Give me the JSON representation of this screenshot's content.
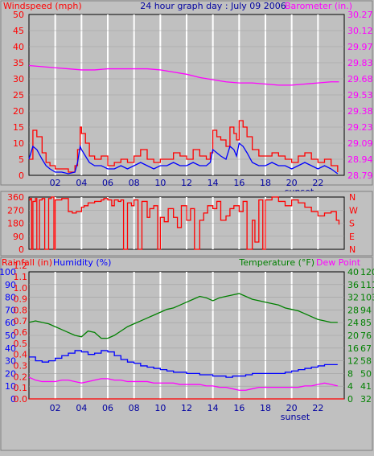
{
  "colors": {
    "background": "#c0c0c0",
    "grid": "#ffffff",
    "wind_speed": "#ff0000",
    "wind_avg": "#0000ff",
    "barometer": "#ff00ff",
    "wind_dir": "#ff0000",
    "humidity": "#0000ff",
    "temperature": "#008000",
    "dew_point": "#ff00ff",
    "rain": "#ff0000"
  },
  "chart_data": [
    {
      "type": "line",
      "title": "24 hour graph day : July 09 2006",
      "ylabel": "Windspeed (mph)",
      "y2label": "Barometer (in.)",
      "x_ticks": [
        "02",
        "04",
        "06",
        "08",
        "10",
        "12",
        "14",
        "16",
        "18",
        "20",
        "22"
      ],
      "sunset_label": "sunset",
      "x_range": [
        0,
        24
      ],
      "ylim": [
        0,
        50
      ],
      "y_ticks": [
        "0",
        "5",
        "10",
        "15",
        "20",
        "25",
        "30",
        "35",
        "40",
        "45",
        "50"
      ],
      "y2lim": [
        28.79,
        30.27
      ],
      "y2_ticks": [
        "28.79",
        "28.94",
        "29.09",
        "29.23",
        "29.38",
        "29.53",
        "29.68",
        "29.83",
        "29.97",
        "30.12",
        "30.27"
      ],
      "grid": true,
      "series": [
        {
          "name": "Windspeed (mph)",
          "axis": "left",
          "x": [
            0,
            0.3,
            0.6,
            1,
            1.3,
            1.6,
            2,
            2.5,
            3,
            3.5,
            3.7,
            3.9,
            4,
            4.3,
            4.6,
            5,
            5.5,
            6,
            6.5,
            7,
            7.5,
            8,
            8.5,
            9,
            9.5,
            10,
            10.5,
            11,
            11.5,
            12,
            12.5,
            13,
            13.5,
            13.8,
            14,
            14.3,
            14.6,
            15,
            15.3,
            15.6,
            15.8,
            16,
            16.3,
            16.6,
            17,
            17.5,
            18,
            18.5,
            19,
            19.5,
            20,
            20.5,
            21,
            21.5,
            22,
            22.5,
            23,
            23.5
          ],
          "values": [
            5,
            14,
            12,
            7,
            4,
            3,
            2,
            2,
            1,
            3,
            8,
            15,
            13,
            10,
            6,
            5,
            6,
            3,
            4,
            5,
            4,
            6,
            8,
            5,
            4,
            5,
            5,
            7,
            6,
            5,
            8,
            6,
            5,
            7,
            14,
            12,
            11,
            9,
            15,
            13,
            11,
            17,
            15,
            12,
            8,
            6,
            6,
            7,
            6,
            5,
            4,
            6,
            7,
            5,
            4,
            5,
            3,
            1
          ]
        },
        {
          "name": "Wind average",
          "axis": "left",
          "x": [
            0,
            0.3,
            0.6,
            1,
            1.3,
            1.6,
            2,
            2.5,
            3,
            3.5,
            3.7,
            3.9,
            4,
            4.3,
            4.6,
            5,
            5.5,
            6,
            6.5,
            7,
            7.5,
            8,
            8.5,
            9,
            9.5,
            10,
            10.5,
            11,
            11.5,
            12,
            12.5,
            13,
            13.5,
            13.8,
            14,
            14.3,
            14.6,
            15,
            15.3,
            15.6,
            15.8,
            16,
            16.3,
            16.6,
            17,
            17.5,
            18,
            18.5,
            19,
            19.5,
            20,
            20.5,
            21,
            21.5,
            22,
            22.5,
            23,
            23.5
          ],
          "values": [
            5,
            9,
            8,
            5,
            3,
            2,
            1,
            1,
            0.5,
            1,
            4,
            9,
            8,
            6,
            4,
            3,
            3,
            2,
            2,
            3,
            2,
            3,
            4,
            3,
            2,
            3,
            3,
            4,
            3,
            3,
            4,
            3,
            3,
            4,
            8,
            7,
            6,
            5,
            9,
            8,
            6,
            10,
            9,
            7,
            4,
            3,
            3,
            4,
            3,
            3,
            2,
            3,
            4,
            3,
            2,
            3,
            2,
            0.5
          ]
        },
        {
          "name": "Barometer (in.)",
          "axis": "right",
          "x": [
            0,
            1,
            2,
            3,
            4,
            5,
            6,
            7,
            8,
            9,
            10,
            11,
            12,
            13,
            14,
            15,
            16,
            17,
            18,
            19,
            20,
            21,
            22,
            23,
            23.6
          ],
          "values": [
            29.8,
            29.79,
            29.78,
            29.77,
            29.76,
            29.76,
            29.77,
            29.77,
            29.77,
            29.77,
            29.76,
            29.74,
            29.72,
            29.69,
            29.67,
            29.65,
            29.64,
            29.64,
            29.63,
            29.62,
            29.62,
            29.63,
            29.64,
            29.65,
            29.65
          ]
        }
      ]
    },
    {
      "type": "line",
      "ylabel": "Wind direction (degrees)",
      "ylim": [
        0,
        360
      ],
      "y_ticks": [
        "0",
        "90",
        "180",
        "270",
        "360"
      ],
      "y2_ticks": [
        "N",
        "E",
        "S",
        "W",
        "N"
      ],
      "x_range": [
        0,
        24
      ],
      "grid": true,
      "series": [
        {
          "name": "Wind direction",
          "x": [
            0,
            0.1,
            0.2,
            0.3,
            0.5,
            0.6,
            0.8,
            1,
            1.2,
            1.5,
            1.7,
            1.9,
            2,
            2.5,
            3,
            3.3,
            3.6,
            4,
            4.2,
            4.5,
            5,
            5.5,
            5.7,
            6,
            6.3,
            6.5,
            6.8,
            7,
            7.2,
            7.5,
            7.8,
            8,
            8.3,
            8.6,
            9,
            9.2,
            9.5,
            9.8,
            10,
            10.3,
            10.6,
            11,
            11.3,
            11.6,
            12,
            12.3,
            12.6,
            13,
            13.3,
            13.6,
            14,
            14.3,
            14.6,
            15,
            15.3,
            15.6,
            16,
            16.3,
            16.6,
            17,
            17.2,
            17.5,
            17.8,
            18,
            18.5,
            19,
            19.5,
            20,
            20.5,
            21,
            21.5,
            22,
            22.5,
            23,
            23.4,
            23.6
          ],
          "values": [
            340,
            350,
            0,
            330,
            350,
            0,
            340,
            350,
            0,
            350,
            360,
            0,
            340,
            350,
            260,
            250,
            260,
            290,
            300,
            320,
            330,
            340,
            350,
            340,
            300,
            340,
            330,
            340,
            0,
            320,
            300,
            340,
            0,
            330,
            220,
            280,
            300,
            0,
            220,
            190,
            280,
            220,
            150,
            300,
            200,
            280,
            0,
            200,
            250,
            300,
            280,
            330,
            200,
            230,
            280,
            300,
            260,
            330,
            0,
            200,
            50,
            340,
            0,
            340,
            360,
            330,
            300,
            340,
            320,
            290,
            260,
            230,
            250,
            260,
            200,
            170
          ]
        }
      ]
    },
    {
      "type": "line",
      "ylabel": "Humidity (%)",
      "y0label": "Rainfall (in)",
      "y2label": "Temperature (°F)",
      "y3label": "Dew Point",
      "x_ticks": [
        "02",
        "04",
        "06",
        "08",
        "10",
        "12",
        "14",
        "16",
        "18",
        "20",
        "22"
      ],
      "sunset_label": "sunset",
      "x_range": [
        0,
        24
      ],
      "rain_ticks": [
        "0.0",
        "0.1",
        "0.2",
        "0.3",
        "0.4",
        "0.5",
        "0.6",
        "0.7",
        "0.8",
        "0.9",
        "1.0",
        "1.1",
        "1.2"
      ],
      "humidity_ticks": [
        "0",
        "10",
        "20",
        "30",
        "40",
        "50",
        "60",
        "70",
        "80",
        "90",
        "100"
      ],
      "temp_c_ticks": [
        "0",
        "4",
        "8",
        "12",
        "16",
        "20",
        "24",
        "28",
        "32",
        "36",
        "40"
      ],
      "temp_f_ticks": [
        "32",
        "41",
        "50",
        "58",
        "67",
        "76",
        "85",
        "94",
        "103",
        "111",
        "120"
      ],
      "grid": true,
      "series": [
        {
          "name": "Temperature (°F)",
          "axis": "temp_f",
          "x": [
            0,
            0.5,
            1,
            1.5,
            2,
            2.5,
            3,
            3.5,
            4,
            4.5,
            5,
            5.5,
            6,
            6.5,
            7,
            7.5,
            8,
            8.5,
            9,
            9.5,
            10,
            10.5,
            11,
            11.5,
            12,
            12.5,
            13,
            13.5,
            14,
            14.5,
            15,
            15.5,
            16,
            16.5,
            17,
            17.5,
            18,
            18.5,
            19,
            19.5,
            20,
            20.5,
            21,
            21.5,
            22,
            22.5,
            23,
            23.5
          ],
          "values": [
            85,
            86,
            85,
            84,
            82,
            80,
            78,
            76,
            75,
            79,
            78,
            74,
            74,
            76,
            79,
            82,
            84,
            86,
            88,
            90,
            92,
            94,
            95,
            97,
            99,
            101,
            103,
            102,
            100,
            102,
            103,
            104,
            105,
            103,
            101,
            100,
            99,
            98,
            97,
            95,
            94,
            93,
            91,
            89,
            87,
            86,
            85,
            85
          ]
        },
        {
          "name": "Humidity (%)",
          "axis": "humidity",
          "x": [
            0,
            0.5,
            1,
            1.5,
            2,
            2.5,
            3,
            3.5,
            4,
            4.5,
            5,
            5.5,
            6,
            6.5,
            7,
            7.5,
            8,
            8.5,
            9,
            9.5,
            10,
            10.5,
            11,
            11.5,
            12,
            12.5,
            13,
            13.5,
            14,
            14.5,
            15,
            15.5,
            16,
            16.5,
            17,
            17.5,
            18,
            18.5,
            19,
            19.5,
            20,
            20.5,
            21,
            21.5,
            22,
            22.5,
            23,
            23.5
          ],
          "values": [
            33,
            30,
            29,
            30,
            32,
            34,
            36,
            38,
            37,
            35,
            36,
            38,
            37,
            34,
            31,
            29,
            28,
            26,
            25,
            24,
            23,
            22,
            21,
            21,
            20,
            20,
            19,
            19,
            18,
            18,
            17,
            18,
            18,
            19,
            20,
            20,
            20,
            20,
            20,
            21,
            22,
            23,
            24,
            25,
            26,
            27,
            27,
            27
          ]
        },
        {
          "name": "Dew Point",
          "axis": "temp_f",
          "x": [
            0,
            0.5,
            1,
            1.5,
            2,
            2.5,
            3,
            3.5,
            4,
            4.5,
            5,
            5.5,
            6,
            6.5,
            7,
            7.5,
            8,
            8.5,
            9,
            9.5,
            10,
            10.5,
            11,
            11.5,
            12,
            12.5,
            13,
            13.5,
            14,
            14.5,
            15,
            15.5,
            16,
            16.5,
            17,
            17.5,
            18,
            18.5,
            19,
            19.5,
            20,
            20.5,
            21,
            21.5,
            22,
            22.5,
            23,
            23.5
          ],
          "values": [
            47,
            45,
            44,
            44,
            44,
            45,
            45,
            44,
            43,
            44,
            45,
            46,
            46,
            45,
            45,
            44,
            44,
            44,
            44,
            43,
            43,
            43,
            43,
            42,
            42,
            42,
            42,
            41,
            41,
            40,
            40,
            39,
            38,
            38,
            39,
            40,
            40,
            40,
            40,
            40,
            40,
            40,
            41,
            41,
            42,
            43,
            42,
            41
          ]
        },
        {
          "name": "Rainfall (in)",
          "axis": "rain",
          "x": [
            0,
            24
          ],
          "values": [
            0,
            0
          ]
        }
      ]
    }
  ]
}
